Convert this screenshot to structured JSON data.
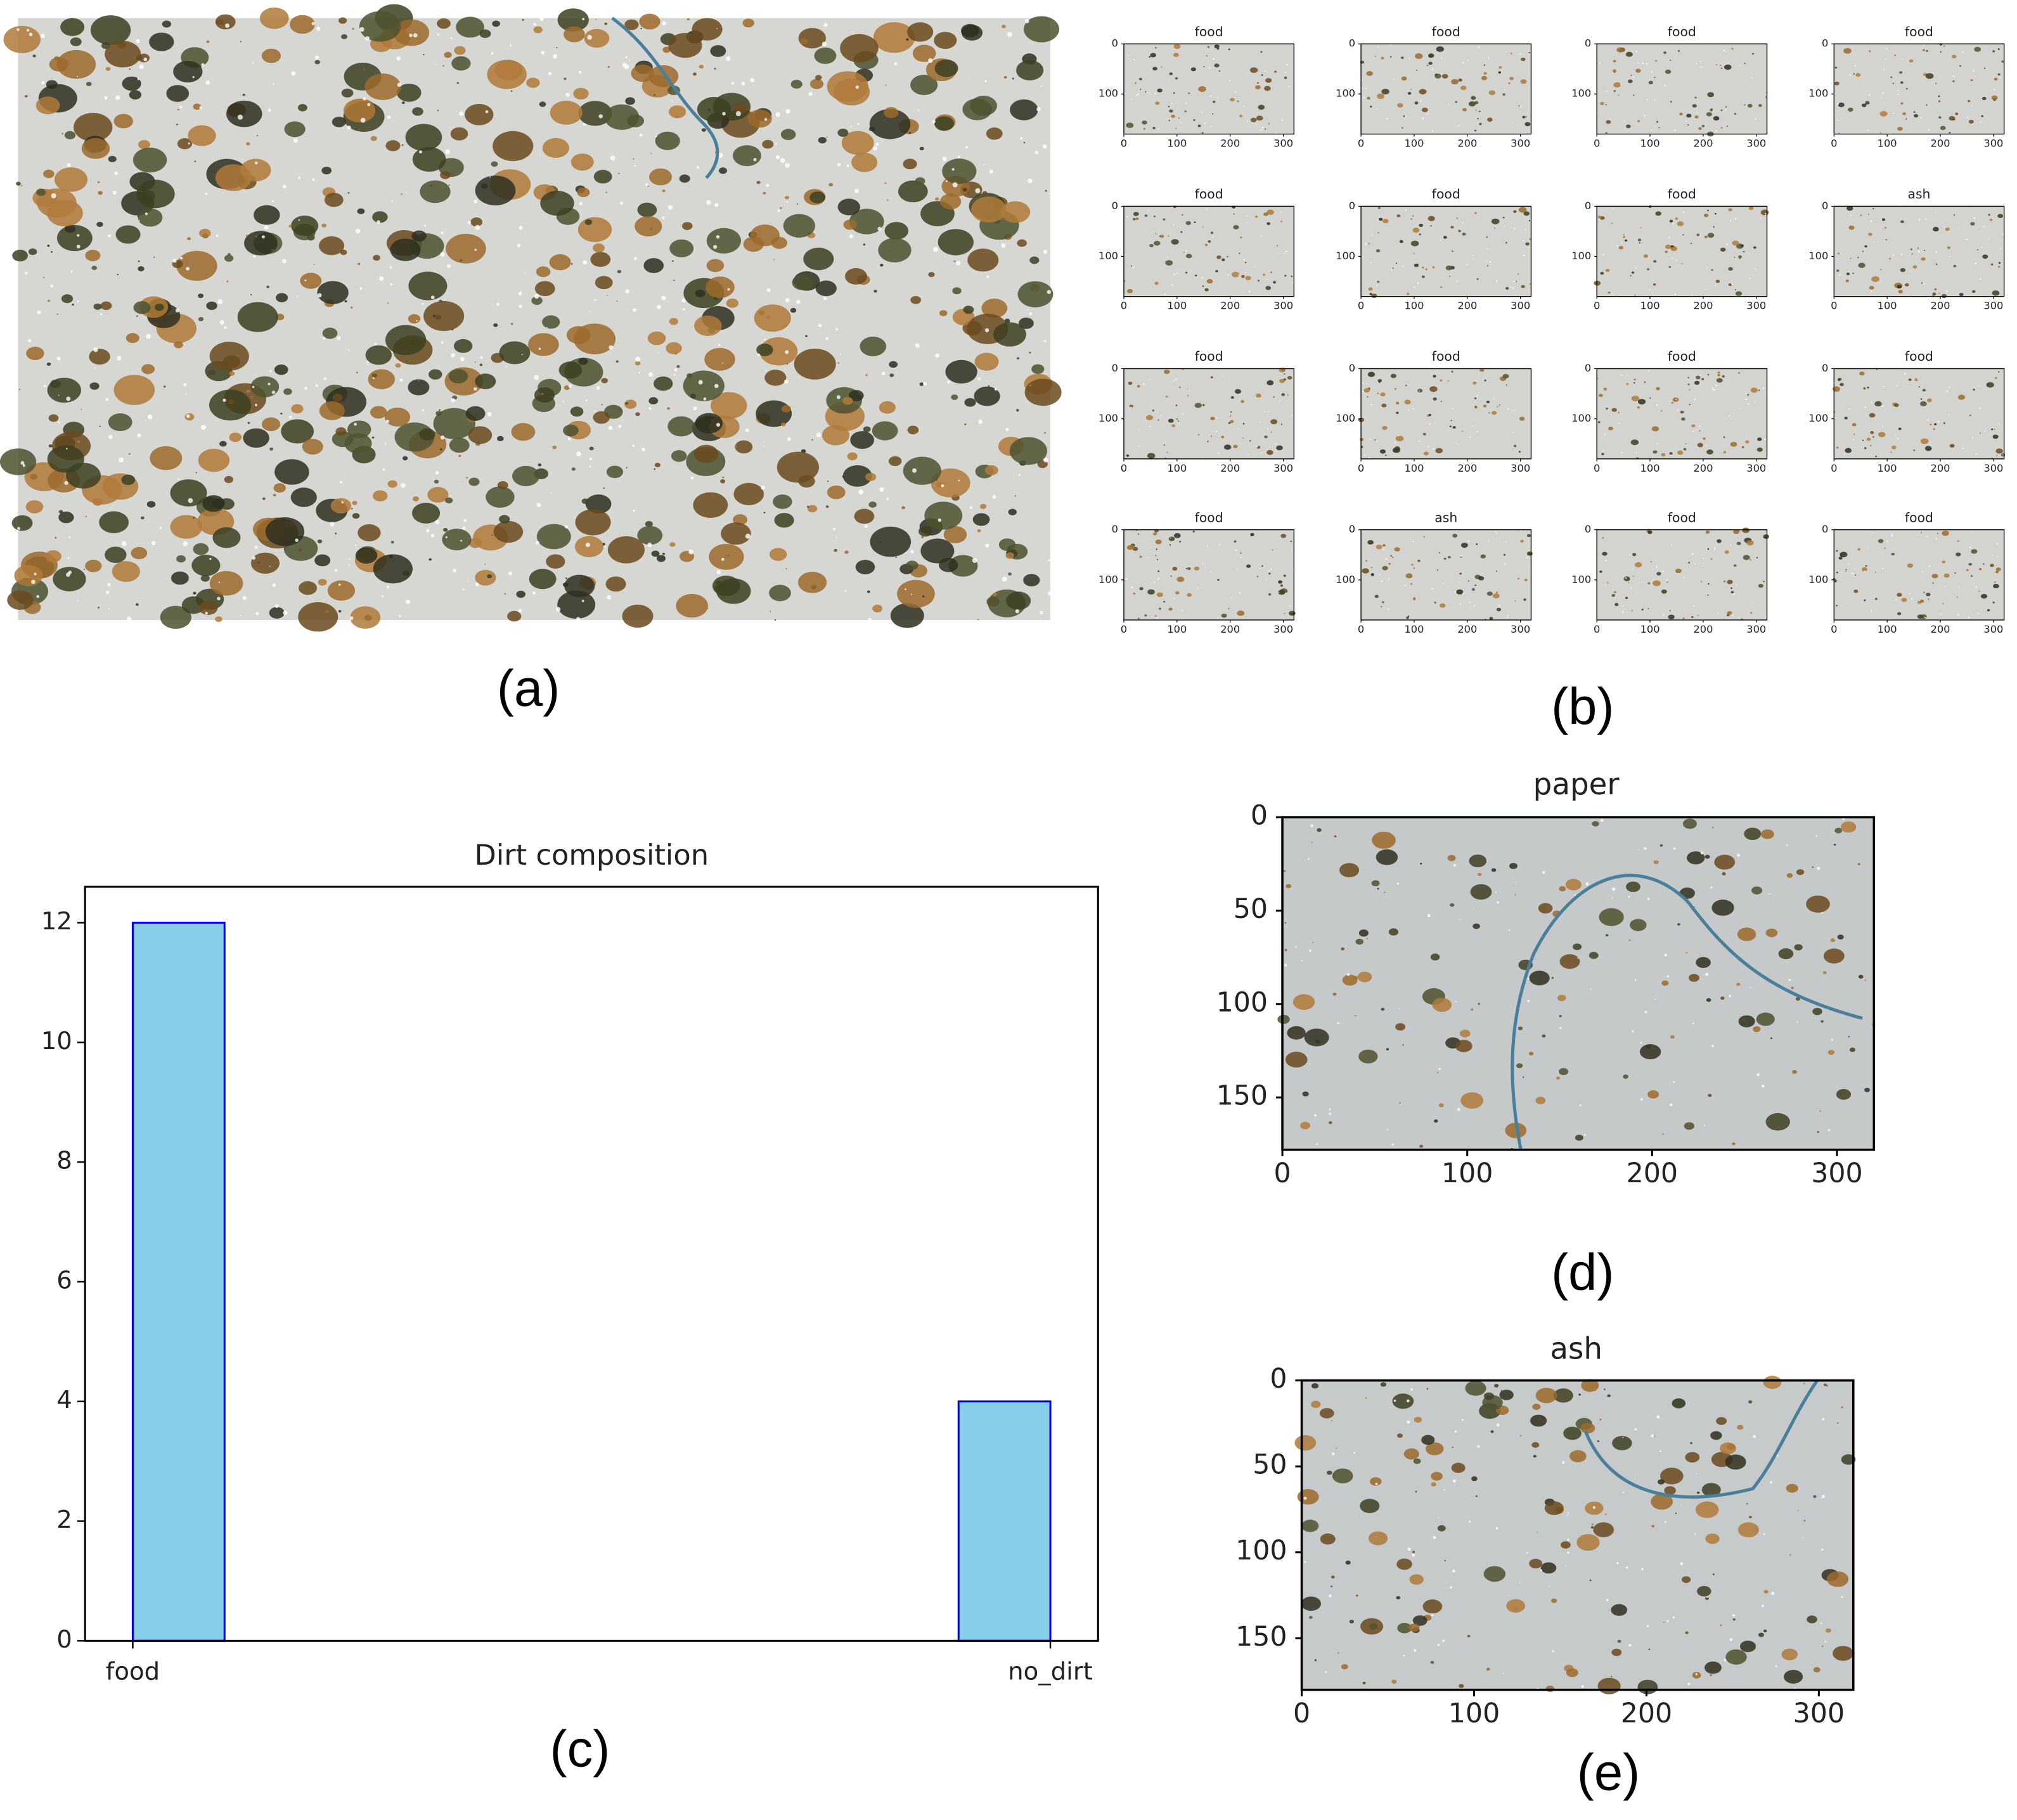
{
  "panels": {
    "a": {
      "caption": "(a)"
    },
    "b": {
      "caption": "(b)",
      "xlim": [
        0,
        320
      ],
      "ylim": [
        0,
        180
      ],
      "xticks": [
        0,
        100,
        200,
        300
      ],
      "yticks": [
        0,
        100
      ],
      "titles": [
        "food",
        "food",
        "food",
        "food",
        "food",
        "food",
        "food",
        "ash",
        "food",
        "food",
        "food",
        "food",
        "food",
        "ash",
        "food",
        "food"
      ]
    },
    "d": {
      "title": "paper",
      "caption": "(d)",
      "xlim": [
        0,
        320
      ],
      "ylim": [
        0,
        178
      ],
      "xticks": [
        0,
        100,
        200,
        300
      ],
      "yticks": [
        0,
        50,
        100,
        150
      ]
    },
    "e": {
      "title": "ash",
      "caption": "(e)",
      "xlim": [
        0,
        320
      ],
      "ylim": [
        0,
        180
      ],
      "xticks": [
        0,
        100,
        200,
        300
      ],
      "yticks": [
        0,
        50,
        100,
        150
      ]
    }
  },
  "chart_data": {
    "type": "histogram",
    "title": "Dirt composition",
    "caption": "(c)",
    "bins": [
      0,
      0.1,
      0.2,
      0.3,
      0.4,
      0.5,
      0.6,
      0.7,
      0.8,
      0.9,
      1
    ],
    "counts": [
      12,
      0,
      0,
      0,
      0,
      0,
      0,
      0,
      0,
      4
    ],
    "color": "#87ceeb",
    "edgecolor": "#0000ff",
    "xlim": [
      -0.052,
      1.052
    ],
    "ylim": [
      0,
      12.6
    ],
    "xticks": [
      {
        "value": 0,
        "label": "food"
      },
      {
        "value": 1,
        "label": "no_dirt"
      }
    ],
    "yticks": [
      0,
      2,
      4,
      6,
      8,
      10,
      12
    ]
  }
}
